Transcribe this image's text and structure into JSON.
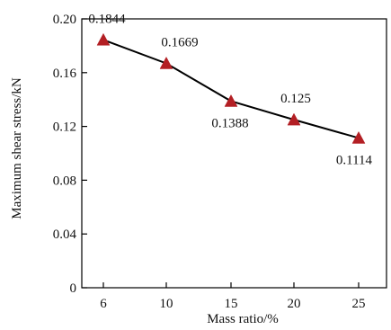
{
  "chart_data": {
    "type": "line",
    "xlabel": "Mass ratio/%",
    "ylabel": "Maximum shear stress/kN",
    "categories": [
      "6",
      "10",
      "15",
      "20",
      "25"
    ],
    "yticks": [
      "0",
      "0.04",
      "0.08",
      "0.12",
      "0.16",
      "0.20"
    ],
    "ylim": [
      0,
      0.2
    ],
    "grid": false,
    "series": [
      {
        "values": [
          0.1844,
          0.1669,
          0.1388,
          0.125,
          0.1114
        ],
        "labels": [
          "0.1844",
          "0.1669",
          "0.1388",
          "0.125",
          "0.1114"
        ],
        "marker": "triangle",
        "marker_color": "#b31f24",
        "line_color": "#000000"
      }
    ]
  }
}
